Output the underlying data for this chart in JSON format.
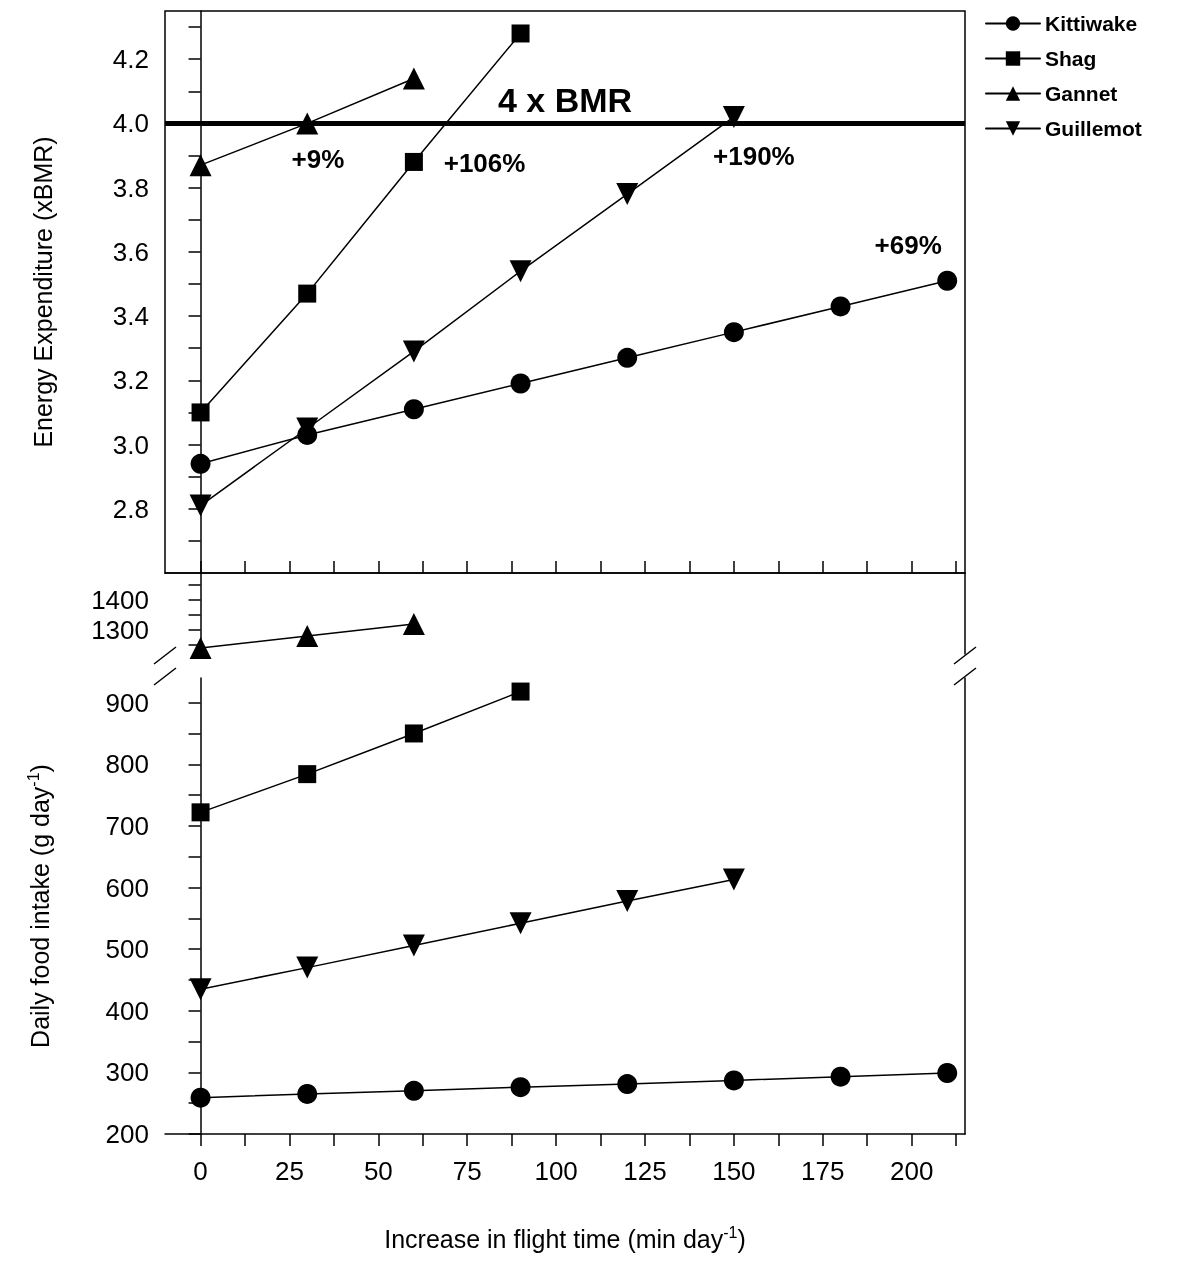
{
  "chart_data": [
    {
      "type": "line",
      "ylabel": "Energy Expenditure (xBMR)",
      "xlim": [
        -10,
        215
      ],
      "ylim": [
        2.6,
        4.35
      ],
      "tick_labels": "y",
      "legend": "top right",
      "xticks": [
        {
          "value": 0,
          "label": null
        },
        {
          "value": 12.5,
          "label": null
        },
        {
          "value": 25,
          "label": null
        },
        {
          "value": 37.5,
          "label": null
        },
        {
          "value": 50,
          "label": null
        },
        {
          "value": 62.5,
          "label": null
        },
        {
          "value": 75,
          "label": null
        },
        {
          "value": 87.5,
          "label": null
        },
        {
          "value": 100,
          "label": null
        },
        {
          "value": 112.5,
          "label": null
        },
        {
          "value": 125,
          "label": null
        },
        {
          "value": 137.5,
          "label": null
        },
        {
          "value": 150,
          "label": null
        },
        {
          "value": 162.5,
          "label": null
        },
        {
          "value": 175,
          "label": null
        },
        {
          "value": 187.5,
          "label": null
        },
        {
          "value": 200,
          "label": null
        },
        {
          "value": 212.5,
          "label": null
        }
      ],
      "yticks": [
        {
          "value": 2.7,
          "label": null
        },
        2.8,
        {
          "value": 2.9,
          "label": null
        },
        {
          "value": 3,
          "label": "3.0"
        },
        {
          "value": 3.1,
          "label": null
        },
        3.2,
        {
          "value": 3.3,
          "label": null
        },
        3.4,
        {
          "value": 3.5,
          "label": null
        },
        3.6,
        {
          "value": 3.7,
          "label": null
        },
        3.8,
        {
          "value": 3.9,
          "label": null
        },
        {
          "value": 4,
          "label": "4.0"
        },
        {
          "value": 4.1,
          "label": null
        },
        4.2,
        {
          "value": 4.3,
          "label": null
        }
      ],
      "series": [
        {
          "name": "Kittiwake",
          "color": "#000000",
          "marker": "circle",
          "x": [
            0,
            30,
            60,
            90,
            120,
            150,
            180,
            210
          ],
          "values": [
            2.94,
            3.03,
            3.11,
            3.19,
            3.27,
            3.35,
            3.43,
            3.51
          ]
        },
        {
          "name": "Shag",
          "color": "#000000",
          "marker": "square",
          "x": [
            0,
            30,
            60,
            90
          ],
          "values": [
            3.1,
            3.47,
            3.88,
            4.28
          ]
        },
        {
          "name": "Gannet",
          "color": "#000000",
          "marker": "triangle",
          "x": [
            0,
            30,
            60
          ],
          "values": [
            3.87,
            4.0,
            4.14
          ]
        },
        {
          "name": "Guillemot",
          "color": "#000000",
          "marker": "triangle-down",
          "x": [
            0,
            30,
            60,
            90,
            120,
            150
          ],
          "values": [
            2.81,
            3.05,
            3.29,
            3.54,
            3.78,
            4.02
          ]
        }
      ],
      "ref_lines": [
        {
          "axis": "y",
          "value": 4.0,
          "label": "4 x BMR",
          "color": "#000000"
        }
      ],
      "annotations": [
        "+69%",
        "+106%",
        "+9%",
        "+190%"
      ]
    },
    {
      "type": "line",
      "xlim": [
        -10,
        215
      ],
      "ylim": [
        1220,
        1490
      ],
      "tick_labels": "y",
      "yticks": [
        {
          "value": 1250,
          "label": null
        },
        1300,
        {
          "value": 1350,
          "label": null
        },
        1400,
        {
          "value": 1450,
          "label": null
        }
      ],
      "series": [
        {
          "color": "#000000",
          "marker": "triangle",
          "x": [
            0,
            30,
            60
          ],
          "values": [
            1240,
            1280,
            1320
          ]
        }
      ]
    },
    {
      "type": "line",
      "xlabel": "Increase in flight time (min day$^{-1}$)",
      "ylabel": "Daily food intake (g day$^{-1}$)",
      "xlim": [
        -10,
        215
      ],
      "ylim": [
        200,
        940
      ],
      "xticks": [
        0,
        {
          "value": 12.5,
          "label": null
        },
        25,
        {
          "value": 37.5,
          "label": null
        },
        50,
        {
          "value": 62.5,
          "label": null
        },
        75,
        {
          "value": 87.5,
          "label": null
        },
        100,
        {
          "value": 112.5,
          "label": null
        },
        125,
        {
          "value": 137.5,
          "label": null
        },
        150,
        {
          "value": 162.5,
          "label": null
        },
        175,
        {
          "value": 187.5,
          "label": null
        },
        200,
        {
          "value": 212.5,
          "label": null
        }
      ],
      "yticks": [
        200,
        {
          "value": 250,
          "label": null
        },
        300,
        {
          "value": 350,
          "label": null
        },
        400,
        {
          "value": 450,
          "label": null
        },
        500,
        {
          "value": 550,
          "label": null
        },
        600,
        {
          "value": 650,
          "label": null
        },
        700,
        {
          "value": 750,
          "label": null
        },
        800,
        {
          "value": 850,
          "label": null
        },
        900
      ],
      "series": [
        {
          "color": "#000000",
          "marker": "circle",
          "x": [
            0,
            30,
            60,
            90,
            120,
            150,
            180,
            210
          ],
          "values": [
            259,
            265,
            270,
            276,
            281,
            287,
            293,
            299
          ]
        },
        {
          "color": "#000000",
          "marker": "square",
          "x": [
            0,
            30,
            60,
            90
          ],
          "values": [
            722,
            784,
            850,
            918
          ]
        },
        {
          "color": "#000000",
          "marker": "triangle-down",
          "x": [
            0,
            30,
            60,
            90,
            120,
            150
          ],
          "values": [
            435,
            470,
            506,
            542,
            578,
            613
          ]
        }
      ]
    }
  ]
}
